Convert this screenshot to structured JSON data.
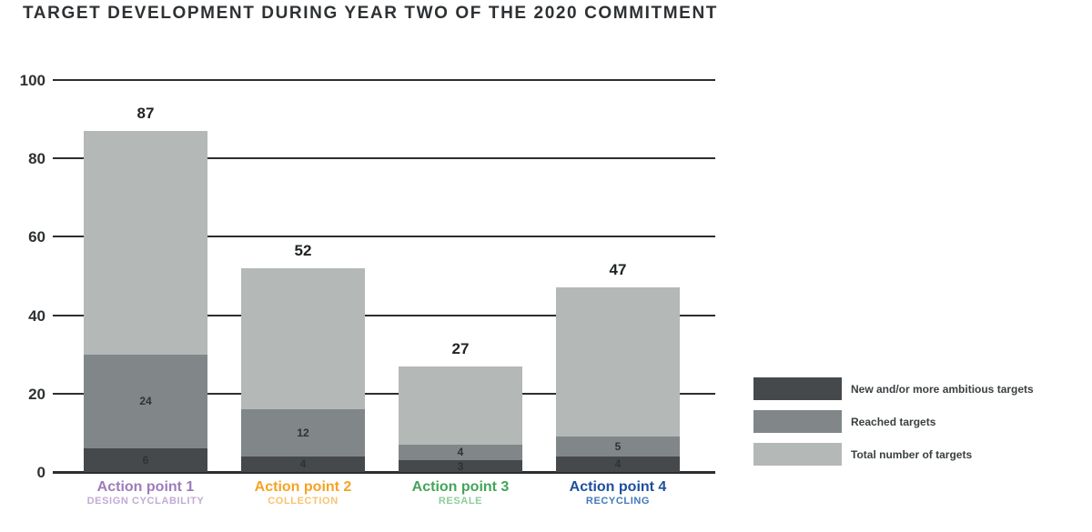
{
  "title": "TARGET DEVELOPMENT DURING YEAR TWO OF THE 2020 COMMITMENT",
  "chart_data": {
    "type": "bar",
    "stacked": true,
    "title": "TARGET DEVELOPMENT DURING YEAR TWO OF THE 2020 COMMITMENT",
    "xlabel": "",
    "ylabel": "",
    "ylim": [
      0,
      100
    ],
    "yticks": [
      0,
      20,
      40,
      60,
      80,
      100
    ],
    "grid": true,
    "legend_position": "right",
    "categories": [
      {
        "label": "Action point 1",
        "sublabel": "DESIGN CYCLABILITY",
        "label_color": "#9d7cba",
        "sublabel_color": "#c3abd6"
      },
      {
        "label": "Action point 2",
        "sublabel": "COLLECTION",
        "label_color": "#f6a322",
        "sublabel_color": "#f9c272"
      },
      {
        "label": "Action point 3",
        "sublabel": "RESALE",
        "label_color": "#43a558",
        "sublabel_color": "#8fcc9a"
      },
      {
        "label": "Action point 4",
        "sublabel": "RECYCLING",
        "label_color": "#1d4f9e",
        "sublabel_color": "#4379bd"
      }
    ],
    "series": [
      {
        "name": "New and/or more ambitious targets",
        "color": "#45494b",
        "values": [
          6,
          4,
          3,
          4
        ],
        "labeled": true
      },
      {
        "name": "Reached targets",
        "color": "#818788",
        "values": [
          24,
          12,
          4,
          5
        ],
        "labeled": true
      },
      {
        "name": "Total number of targets",
        "color": "#b4b8b7",
        "values": [
          87,
          52,
          27,
          47
        ],
        "role": "total-outline",
        "labeled": false
      }
    ],
    "totals": [
      87,
      52,
      27,
      47
    ]
  },
  "legend": {
    "items": [
      {
        "label": "New and/or more ambitious targets",
        "color": "#45494b"
      },
      {
        "label": "Reached targets",
        "color": "#818788"
      },
      {
        "label": "Total number of targets",
        "color": "#b4b8b7"
      }
    ]
  }
}
